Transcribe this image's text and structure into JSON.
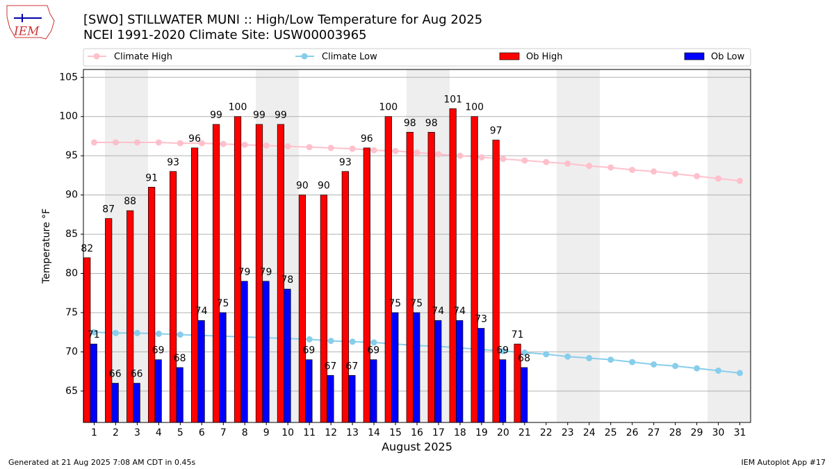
{
  "chart_data": {
    "type": "bar",
    "logo_text": "IEM",
    "title": "[SWO] STILLWATER MUNI :: High/Low Temperature for Aug 2025",
    "subtitle": "NCEI 1991-2020 Climate Site: USW00003965",
    "x_label": "August 2025",
    "y_label": "Temperature °F",
    "footer_left": "Generated at 21 Aug 2025 7:08 AM CDT in 0.45s",
    "footer_right": "IEM Autoplot App #17",
    "categories": [
      "1",
      "2",
      "3",
      "4",
      "5",
      "6",
      "7",
      "8",
      "9",
      "10",
      "11",
      "12",
      "13",
      "14",
      "15",
      "16",
      "17",
      "18",
      "19",
      "20",
      "21",
      "22",
      "23",
      "24",
      "25",
      "26",
      "27",
      "28",
      "29",
      "30",
      "31"
    ],
    "ylim": [
      61,
      106
    ],
    "yticks": [
      65,
      70,
      75,
      80,
      85,
      90,
      95,
      100,
      105
    ],
    "grid": true,
    "series": [
      {
        "name": "Climate High",
        "type": "line",
        "color": "#ffc0cb",
        "values": [
          96.7,
          96.7,
          96.7,
          96.7,
          96.6,
          96.6,
          96.5,
          96.4,
          96.3,
          96.2,
          96.1,
          96.0,
          95.9,
          95.7,
          95.6,
          95.4,
          95.2,
          95.0,
          94.8,
          94.6,
          94.4,
          94.2,
          94.0,
          93.7,
          93.5,
          93.2,
          93.0,
          92.7,
          92.4,
          92.1,
          91.8
        ]
      },
      {
        "name": "Climate Low",
        "type": "line",
        "color": "#87ceeb",
        "values": [
          72.5,
          72.4,
          72.4,
          72.3,
          72.2,
          72.1,
          72.0,
          71.9,
          71.8,
          71.7,
          71.6,
          71.4,
          71.3,
          71.2,
          71.0,
          70.8,
          70.7,
          70.5,
          70.3,
          70.1,
          69.9,
          69.7,
          69.4,
          69.2,
          69.0,
          68.7,
          68.4,
          68.2,
          67.9,
          67.6,
          67.3
        ]
      },
      {
        "name": "Ob High",
        "type": "bar",
        "color": "#ff0000",
        "values": [
          82,
          87,
          88,
          91,
          93,
          96,
          99,
          100,
          99,
          99,
          90,
          90,
          93,
          96,
          100,
          98,
          98,
          101,
          100,
          97,
          71,
          null,
          null,
          null,
          null,
          null,
          null,
          null,
          null,
          null,
          null
        ]
      },
      {
        "name": "Ob Low",
        "type": "bar",
        "color": "#0000ff",
        "values": [
          71,
          66,
          66,
          69,
          68,
          74,
          75,
          79,
          79,
          78,
          69,
          67,
          67,
          69,
          75,
          75,
          74,
          74,
          73,
          69,
          68,
          null,
          null,
          null,
          null,
          null,
          null,
          null,
          null,
          null,
          null
        ]
      }
    ]
  }
}
